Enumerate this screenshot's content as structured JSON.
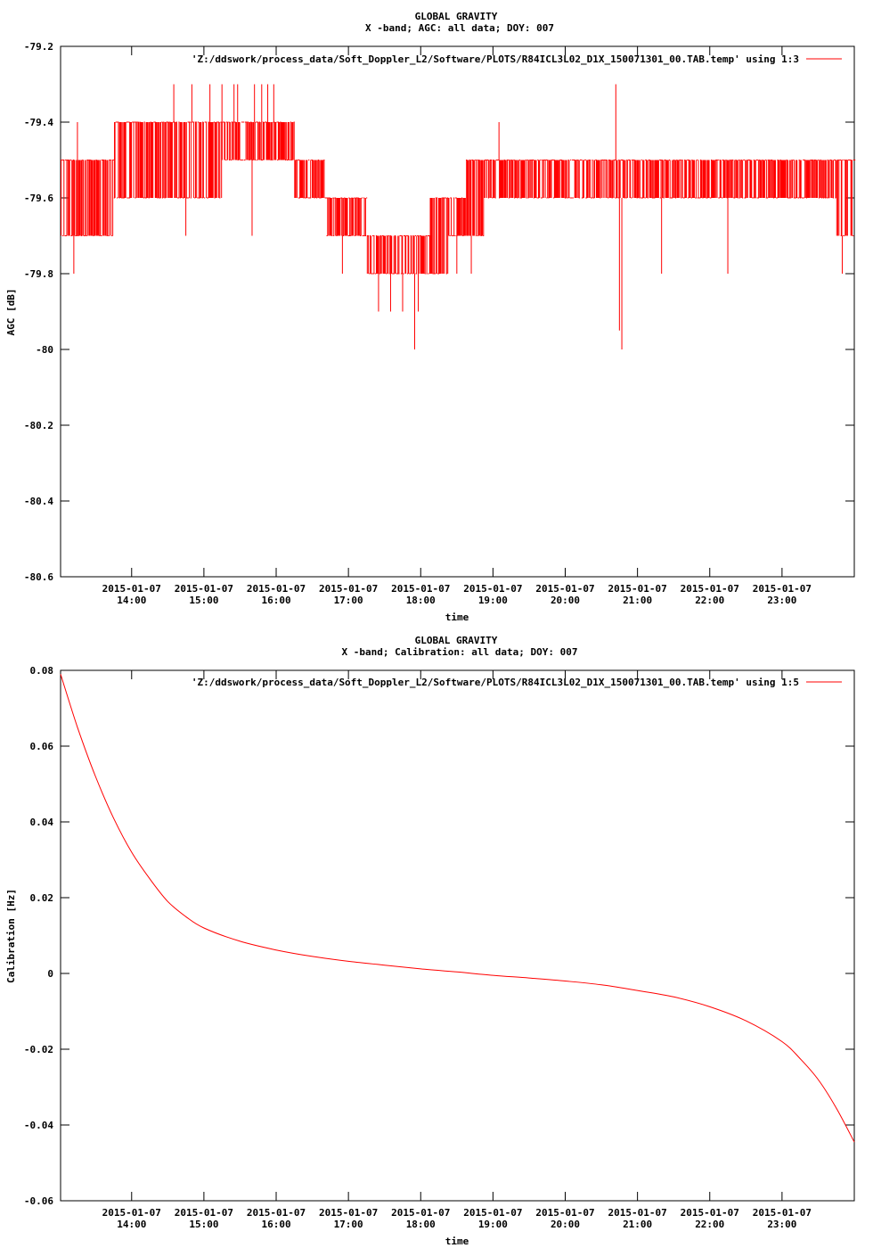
{
  "page": {
    "background": "#ffffff",
    "line_color": "#ff0000"
  },
  "chart_data": [
    {
      "type": "line",
      "title": "GLOBAL GRAVITY",
      "subtitle": "X -band; AGC: all data; DOY: 007",
      "xlabel": "time",
      "ylabel": "AGC [dB]",
      "legend": "'Z:/ddswork/process_data/Soft_Doppler_L2/Software/PLOTS/R84ICL3L02_D1X_150071301_00.TAB.temp' using 1:3",
      "legend_position": "top-right",
      "grid": false,
      "color": "#ff0000",
      "xlim": [
        "2015-01-07 13:01",
        "2015-01-08 00:00"
      ],
      "ylim": [
        -80.6,
        -79.2
      ],
      "yticks": [
        -79.2,
        -79.4,
        -79.6,
        -79.8,
        -80,
        -80.2,
        -80.4,
        -80.6
      ],
      "ytick_labels": [
        "-79.2",
        "-79.4",
        "-79.6",
        "-79.8",
        "-80",
        "-80.2",
        "-80.4",
        "-80.6"
      ],
      "xticks": [
        {
          "at": "2015-01-07 14:00",
          "date": "2015-01-07",
          "time": "14:00"
        },
        {
          "at": "2015-01-07 15:00",
          "date": "2015-01-07",
          "time": "15:00"
        },
        {
          "at": "2015-01-07 16:00",
          "date": "2015-01-07",
          "time": "16:00"
        },
        {
          "at": "2015-01-07 17:00",
          "date": "2015-01-07",
          "time": "17:00"
        },
        {
          "at": "2015-01-07 18:00",
          "date": "2015-01-07",
          "time": "18:00"
        },
        {
          "at": "2015-01-07 19:00",
          "date": "2015-01-07",
          "time": "19:00"
        },
        {
          "at": "2015-01-07 20:00",
          "date": "2015-01-07",
          "time": "20:00"
        },
        {
          "at": "2015-01-07 21:00",
          "date": "2015-01-07",
          "time": "21:00"
        },
        {
          "at": "2015-01-07 22:00",
          "date": "2015-01-07",
          "time": "22:00"
        },
        {
          "at": "2015-01-07 23:00",
          "date": "2015-01-07",
          "time": "23:00"
        }
      ],
      "band": {
        "x": [
          "2015-01-07 13:01",
          "2015-01-07 13:30",
          "2015-01-07 14:00",
          "2015-01-07 14:30",
          "2015-01-07 15:00",
          "2015-01-07 15:30",
          "2015-01-07 16:00",
          "2015-01-07 16:30",
          "2015-01-07 16:50",
          "2015-01-07 17:10",
          "2015-01-07 17:20",
          "2015-01-07 17:40",
          "2015-01-07 18:00",
          "2015-01-07 18:15",
          "2015-01-07 18:30",
          "2015-01-07 18:45",
          "2015-01-07 19:00",
          "2015-01-07 19:30",
          "2015-01-07 20:00",
          "2015-01-07 20:30",
          "2015-01-07 21:00",
          "2015-01-07 21:30",
          "2015-01-07 22:00",
          "2015-01-07 22:30",
          "2015-01-07 23:00",
          "2015-01-07 23:30",
          "2015-01-08 00:00"
        ],
        "low": [
          -79.7,
          -79.7,
          -79.6,
          -79.6,
          -79.6,
          -79.5,
          -79.5,
          -79.6,
          -79.7,
          -79.7,
          -79.8,
          -79.8,
          -79.8,
          -79.8,
          -79.7,
          -79.7,
          -79.6,
          -79.6,
          -79.6,
          -79.6,
          -79.6,
          -79.6,
          -79.6,
          -79.6,
          -79.6,
          -79.6,
          -79.7
        ],
        "high": [
          -79.5,
          -79.5,
          -79.4,
          -79.4,
          -79.4,
          -79.4,
          -79.4,
          -79.5,
          -79.6,
          -79.6,
          -79.7,
          -79.7,
          -79.7,
          -79.6,
          -79.6,
          -79.5,
          -79.5,
          -79.5,
          -79.5,
          -79.5,
          -79.5,
          -79.5,
          -79.5,
          -79.5,
          -79.5,
          -79.5,
          -79.5
        ]
      },
      "spikes": [
        {
          "x": "2015-01-07 13:12",
          "y": -79.8
        },
        {
          "x": "2015-01-07 13:15",
          "y": -79.4
        },
        {
          "x": "2015-01-07 14:35",
          "y": -79.3
        },
        {
          "x": "2015-01-07 14:50",
          "y": -79.3
        },
        {
          "x": "2015-01-07 15:05",
          "y": -79.3
        },
        {
          "x": "2015-01-07 15:15",
          "y": -79.3
        },
        {
          "x": "2015-01-07 15:25",
          "y": -79.3
        },
        {
          "x": "2015-01-07 15:28",
          "y": -79.3
        },
        {
          "x": "2015-01-07 15:42",
          "y": -79.3
        },
        {
          "x": "2015-01-07 15:48",
          "y": -79.3
        },
        {
          "x": "2015-01-07 15:53",
          "y": -79.3
        },
        {
          "x": "2015-01-07 15:58",
          "y": -79.3
        },
        {
          "x": "2015-01-07 15:40",
          "y": -79.7
        },
        {
          "x": "2015-01-07 14:45",
          "y": -79.7
        },
        {
          "x": "2015-01-07 16:55",
          "y": -79.8
        },
        {
          "x": "2015-01-07 17:25",
          "y": -79.9
        },
        {
          "x": "2015-01-07 17:35",
          "y": -79.9
        },
        {
          "x": "2015-01-07 17:45",
          "y": -79.9
        },
        {
          "x": "2015-01-07 17:55",
          "y": -80.0
        },
        {
          "x": "2015-01-07 17:58",
          "y": -79.9
        },
        {
          "x": "2015-01-07 18:30",
          "y": -79.8
        },
        {
          "x": "2015-01-07 18:42",
          "y": -79.8
        },
        {
          "x": "2015-01-07 19:05",
          "y": -79.4
        },
        {
          "x": "2015-01-07 20:42",
          "y": -79.3
        },
        {
          "x": "2015-01-07 20:45",
          "y": -79.95
        },
        {
          "x": "2015-01-07 20:47",
          "y": -80.0
        },
        {
          "x": "2015-01-07 21:20",
          "y": -79.8
        },
        {
          "x": "2015-01-07 22:15",
          "y": -79.8
        },
        {
          "x": "2015-01-07 23:50",
          "y": -79.8
        }
      ]
    },
    {
      "type": "line",
      "title": "GLOBAL GRAVITY",
      "subtitle": "X -band; Calibration: all data; DOY: 007",
      "xlabel": "time",
      "ylabel": "Calibration [Hz]",
      "legend": "'Z:/ddswork/process_data/Soft_Doppler_L2/Software/PLOTS/R84ICL3L02_D1X_150071301_00.TAB.temp' using 1:5",
      "legend_position": "top-right",
      "grid": false,
      "color": "#ff0000",
      "xlim": [
        "2015-01-07 13:01",
        "2015-01-08 00:00"
      ],
      "ylim": [
        -0.06,
        0.08
      ],
      "yticks": [
        0.08,
        0.06,
        0.04,
        0.02,
        0,
        -0.02,
        -0.04,
        -0.06
      ],
      "ytick_labels": [
        "0.08",
        "0.06",
        "0.04",
        "0.02",
        "0",
        "-0.02",
        "-0.04",
        "-0.06"
      ],
      "xticks": [
        {
          "at": "2015-01-07 14:00",
          "date": "2015-01-07",
          "time": "14:00"
        },
        {
          "at": "2015-01-07 15:00",
          "date": "2015-01-07",
          "time": "15:00"
        },
        {
          "at": "2015-01-07 16:00",
          "date": "2015-01-07",
          "time": "16:00"
        },
        {
          "at": "2015-01-07 17:00",
          "date": "2015-01-07",
          "time": "17:00"
        },
        {
          "at": "2015-01-07 18:00",
          "date": "2015-01-07",
          "time": "18:00"
        },
        {
          "at": "2015-01-07 19:00",
          "date": "2015-01-07",
          "time": "19:00"
        },
        {
          "at": "2015-01-07 20:00",
          "date": "2015-01-07",
          "time": "20:00"
        },
        {
          "at": "2015-01-07 21:00",
          "date": "2015-01-07",
          "time": "21:00"
        },
        {
          "at": "2015-01-07 22:00",
          "date": "2015-01-07",
          "time": "22:00"
        },
        {
          "at": "2015-01-07 23:00",
          "date": "2015-01-07",
          "time": "23:00"
        }
      ],
      "x": [
        "2015-01-07 13:01",
        "2015-01-07 13:15",
        "2015-01-07 13:30",
        "2015-01-07 13:45",
        "2015-01-07 14:00",
        "2015-01-07 14:15",
        "2015-01-07 14:30",
        "2015-01-07 14:45",
        "2015-01-07 15:00",
        "2015-01-07 15:30",
        "2015-01-07 16:00",
        "2015-01-07 16:30",
        "2015-01-07 17:00",
        "2015-01-07 17:30",
        "2015-01-07 18:00",
        "2015-01-07 18:30",
        "2015-01-07 19:00",
        "2015-01-07 19:30",
        "2015-01-07 20:00",
        "2015-01-07 20:30",
        "2015-01-07 21:00",
        "2015-01-07 21:30",
        "2015-01-07 22:00",
        "2015-01-07 22:30",
        "2015-01-07 23:00",
        "2015-01-07 23:15",
        "2015-01-07 23:30",
        "2015-01-07 23:45",
        "2015-01-08 00:00"
      ],
      "values": [
        0.079,
        0.065,
        0.052,
        0.041,
        0.032,
        0.025,
        0.019,
        0.015,
        0.012,
        0.0085,
        0.0062,
        0.0045,
        0.0032,
        0.0022,
        0.0012,
        0.0004,
        -0.0005,
        -0.0012,
        -0.002,
        -0.003,
        -0.0045,
        -0.0062,
        -0.0088,
        -0.0125,
        -0.018,
        -0.0225,
        -0.028,
        -0.0355,
        -0.0445
      ]
    }
  ]
}
